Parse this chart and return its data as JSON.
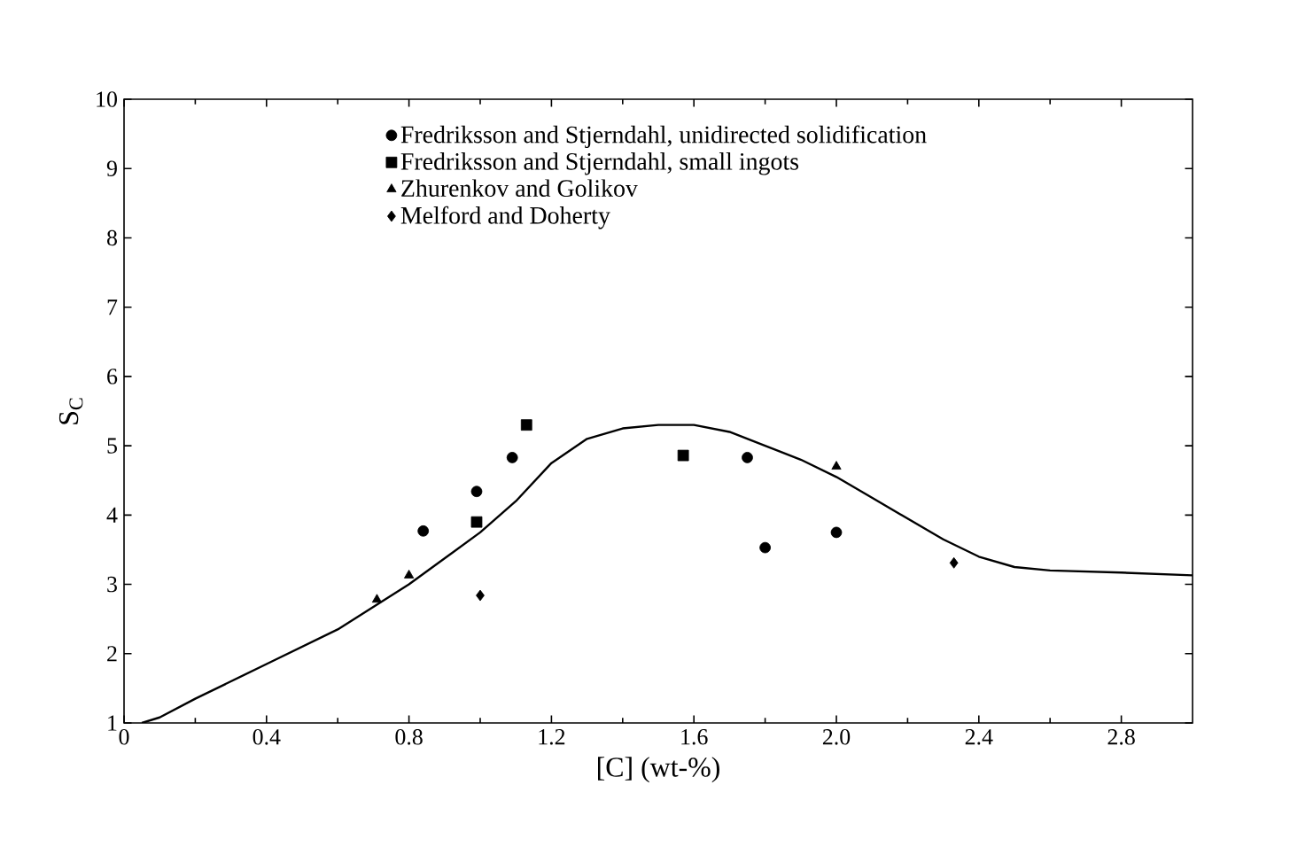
{
  "chart_data": {
    "type": "scatter",
    "xlabel": "[C] (wt-%)",
    "ylabel": "S$_{C}$",
    "xlim": [
      0,
      3.0
    ],
    "ylim": [
      1,
      10
    ],
    "xticks": [
      0,
      0.4,
      0.8,
      1.2,
      1.6,
      {
        "value": 2.0,
        "label": "2.0"
      },
      2.4,
      2.8
    ],
    "yticks": [
      1,
      2,
      3,
      4,
      5,
      6,
      7,
      8,
      9,
      10
    ],
    "grid": false,
    "legend": "top",
    "series": [
      {
        "name": "Fredriksson and Stjerndahl, unidirected solidification",
        "color": "#000000",
        "marker": "circle",
        "x": [
          0.84,
          0.99,
          1.09,
          1.75,
          1.8,
          2.0
        ],
        "values": [
          3.77,
          4.34,
          4.83,
          4.83,
          3.53,
          3.75
        ]
      },
      {
        "name": "Fredriksson and Stjerndahl, small ingots",
        "color": "#000000",
        "marker": "square",
        "x": [
          0.99,
          1.13,
          1.57
        ],
        "values": [
          3.9,
          5.3,
          4.86
        ]
      },
      {
        "name": "Zhurenkov and Golikov",
        "color": "#000000",
        "marker": "triangle",
        "x": [
          0.71,
          0.8,
          2.0
        ],
        "values": [
          2.78,
          3.13,
          4.7
        ]
      },
      {
        "name": "Melford and Doherty",
        "color": "#000000",
        "marker": "diamond",
        "x": [
          1.0,
          2.33
        ],
        "values": [
          2.84,
          3.31
        ]
      },
      {
        "type": "line",
        "color": "#000000",
        "marker": "none",
        "line_style": "solid",
        "x": [
          0.05,
          0.1,
          0.2,
          0.4,
          0.6,
          0.8,
          1.0,
          1.1,
          1.2,
          1.3,
          1.4,
          1.5,
          1.6,
          1.7,
          1.8,
          1.9,
          2.0,
          2.1,
          2.2,
          2.3,
          2.4,
          2.5,
          2.6,
          2.8,
          3.0
        ],
        "values": [
          1.0,
          1.08,
          1.35,
          1.85,
          2.35,
          3.0,
          3.75,
          4.2,
          4.75,
          5.1,
          5.25,
          5.3,
          5.3,
          5.2,
          5.0,
          4.8,
          4.55,
          4.25,
          3.95,
          3.65,
          3.4,
          3.25,
          3.2,
          3.17,
          3.13
        ]
      }
    ]
  }
}
